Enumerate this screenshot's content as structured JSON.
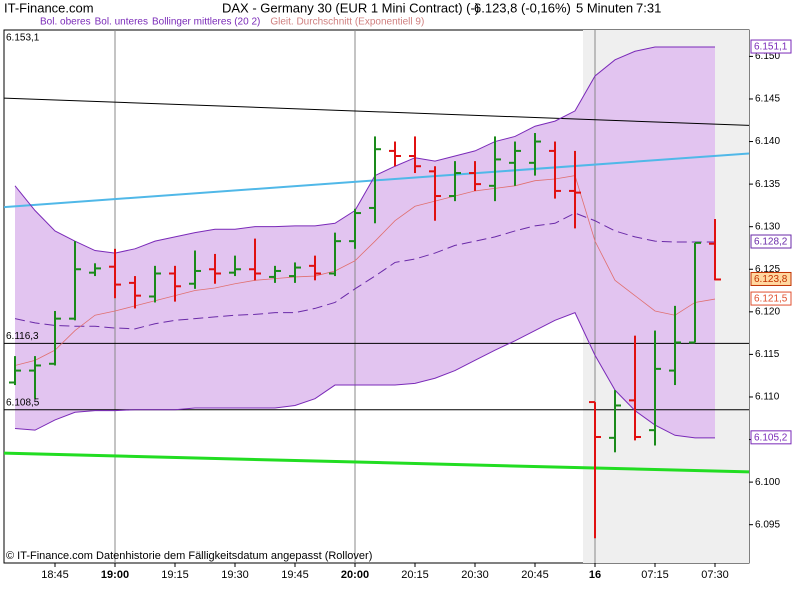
{
  "header": {
    "site": "IT-Finance.com",
    "title": "DAX - Germany 30 (EUR 1 Mini Contract) (-)",
    "price": "6.123,8 (-0,16%)",
    "interval": "5 Minuten",
    "time": "7:31"
  },
  "footer": "© IT-Finance.com  Datenhistorie dem Fälligkeitsdatum angepasst (Rollover)",
  "chart_data": {
    "type": "ohlc",
    "categories": [
      null,
      null,
      "18:45",
      null,
      null,
      "19:00",
      null,
      null,
      "19:15",
      null,
      null,
      "19:30",
      null,
      null,
      "19:45",
      null,
      null,
      "20:00",
      null,
      null,
      "20:15",
      null,
      null,
      "20:30",
      null,
      null,
      "20:45",
      null,
      null,
      "16",
      null,
      null,
      "07:15",
      null,
      null,
      "07:30"
    ],
    "ohlc": {
      "up_color": "#1a8a1a",
      "down_color": "#e01010",
      "close_label": "6.123,8",
      "open": [
        6111.7,
        6113.1,
        6113.9,
        6119.2,
        6124.6,
        6125.3,
        6123.4,
        6121.8,
        6124.5,
        6123.3,
        6125.0,
        6124.6,
        6125.0,
        6124.1,
        6124.2,
        6125.4,
        6124.5,
        6128.3,
        6132.2,
        6138.9,
        6138.3,
        6136.5,
        6133.6,
        6136.3,
        6134.8,
        6137.5,
        6137.5,
        6138.9,
        6134.2,
        6109.4,
        6105.2,
        6109.6,
        6106.1,
        6113.1,
        6116.4,
        6128.0
      ],
      "high": [
        6114.8,
        6114.8,
        6120.1,
        6128.3,
        6125.7,
        6127.4,
        6124.2,
        6125.4,
        6125.4,
        6127.2,
        6126.8,
        6126.6,
        6128.6,
        6125.4,
        6125.8,
        6126.6,
        6129.3,
        6132.1,
        6140.6,
        6140.0,
        6140.6,
        6137.1,
        6137.7,
        6137.7,
        6140.6,
        6140.0,
        6141.0,
        6140.0,
        6138.9,
        6109.4,
        6110.8,
        6117.2,
        6117.8,
        6120.7,
        6128.1,
        6130.9
      ],
      "low": [
        6111.4,
        6109.8,
        6113.7,
        6119.0,
        6124.2,
        6121.6,
        6120.4,
        6121.1,
        6121.2,
        6122.7,
        6123.3,
        6124.2,
        6123.7,
        6123.4,
        6123.4,
        6123.7,
        6124.2,
        6127.4,
        6130.4,
        6137.1,
        6136.3,
        6130.7,
        6133.0,
        6134.2,
        6133.0,
        6134.8,
        6136.0,
        6133.3,
        6129.8,
        6093.4,
        6103.5,
        6104.9,
        6104.3,
        6111.4,
        6116.4,
        6123.7
      ],
      "close": [
        6113.1,
        6113.7,
        6119.2,
        6125.0,
        6125.1,
        6123.2,
        6121.9,
        6124.5,
        6123.0,
        6124.8,
        6124.5,
        6125.0,
        6124.5,
        6124.8,
        6125.2,
        6124.5,
        6128.3,
        6131.6,
        6139.1,
        6138.3,
        6137.1,
        6133.6,
        6136.3,
        6135.0,
        6137.9,
        6138.9,
        6140.0,
        6134.2,
        6134.0,
        6105.3,
        6109.0,
        6105.3,
        6113.3,
        6116.4,
        6128.1,
        6123.8
      ]
    },
    "series": [
      {
        "name": "Bol. oberes",
        "color": "#7a2ab8",
        "last_label": "6.151,1",
        "values": [
          6134.8,
          6131.9,
          6129.5,
          6128.3,
          6127.2,
          6126.9,
          6127.4,
          6128.3,
          6128.8,
          6129.3,
          6129.7,
          6129.7,
          6130.0,
          6130.0,
          6130.1,
          6130.1,
          6130.4,
          6131.9,
          6136.0,
          6137.1,
          6138.1,
          6137.7,
          6138.3,
          6138.9,
          6140.0,
          6140.6,
          6141.8,
          6142.4,
          6143.6,
          6147.7,
          6149.6,
          6150.6,
          6151.1,
          6151.1,
          6151.1,
          6151.1
        ]
      },
      {
        "name": "Bol. unteres",
        "color": "#7a2ab8",
        "last_label": "6.105,2",
        "values": [
          6106.3,
          6106.1,
          6107.3,
          6108.2,
          6108.4,
          6108.4,
          6108.5,
          6108.5,
          6108.5,
          6108.7,
          6108.7,
          6108.7,
          6108.7,
          6108.7,
          6109.0,
          6109.8,
          6111.4,
          6111.4,
          6111.4,
          6111.4,
          6111.6,
          6112.2,
          6113.1,
          6114.3,
          6115.5,
          6116.6,
          6117.8,
          6119.0,
          6119.9,
          6114.9,
          6110.8,
          6108.4,
          6106.7,
          6105.5,
          6105.2,
          6105.2
        ]
      },
      {
        "name": "Bollinger mittleres (20 2)",
        "color": "#6a2aa8",
        "dashed": true,
        "last_label": "6.128,2",
        "values": [
          6119.2,
          6118.7,
          6118.4,
          6118.3,
          6118.3,
          6118.1,
          6118.0,
          6118.6,
          6119.0,
          6119.2,
          6119.4,
          6119.6,
          6119.7,
          6119.9,
          6119.9,
          6120.4,
          6121.1,
          6122.7,
          6124.2,
          6125.8,
          6126.2,
          6126.9,
          6127.8,
          6128.3,
          6128.8,
          6129.5,
          6130.1,
          6130.4,
          6131.6,
          6130.7,
          6129.5,
          6128.8,
          6128.3,
          6128.2,
          6128.2,
          6128.2
        ]
      },
      {
        "name": "Gleit. Durchschnitt (Exponentiell 9)",
        "color": "#e07070",
        "last_label": "6.121,5",
        "values": [
          6113.7,
          6114.3,
          6115.5,
          6117.8,
          6119.6,
          6120.1,
          6120.7,
          6121.3,
          6121.9,
          6122.5,
          6122.8,
          6123.3,
          6123.7,
          6123.9,
          6124.1,
          6124.2,
          6124.8,
          6126.0,
          6128.3,
          6130.7,
          6132.4,
          6133.0,
          6133.6,
          6134.2,
          6134.5,
          6134.8,
          6135.4,
          6135.6,
          6136.0,
          6128.3,
          6123.7,
          6121.9,
          6120.1,
          6119.6,
          6121.1,
          6121.5
        ]
      }
    ],
    "band_fill": "#e2c4f0",
    "trendlines": [
      {
        "color": "#000000",
        "width": 1,
        "values": [
          6145.1,
          6141.9
        ]
      },
      {
        "color": "#50b8e8",
        "width": 2,
        "values": [
          6132.3,
          6138.6
        ]
      },
      {
        "color": "#22dd22",
        "width": 3,
        "values": [
          6103.4,
          6101.2
        ]
      }
    ],
    "levels": [
      {
        "value": 6116.3,
        "label": "6.116,3"
      },
      {
        "value": 6108.5,
        "label": "6.108,5"
      }
    ],
    "ylim": [
      6090.5,
      6153.1
    ],
    "ylim_label": "6.153,1",
    "yticks": [
      {
        "value": 6095,
        "label": "6.095"
      },
      {
        "value": 6100,
        "label": "6.100"
      },
      {
        "value": 6105,
        "label": "6.105"
      },
      {
        "value": 6110,
        "label": "6.110"
      },
      {
        "value": 6115,
        "label": "6.115"
      },
      {
        "value": 6120,
        "label": "6.120"
      },
      {
        "value": 6125,
        "label": "6.125"
      },
      {
        "value": 6130,
        "label": "6.130"
      },
      {
        "value": 6135,
        "label": "6.135"
      },
      {
        "value": 6140,
        "label": "6.140"
      },
      {
        "value": 6145,
        "label": "6.145"
      },
      {
        "value": 6150,
        "label": "6.150"
      }
    ]
  }
}
